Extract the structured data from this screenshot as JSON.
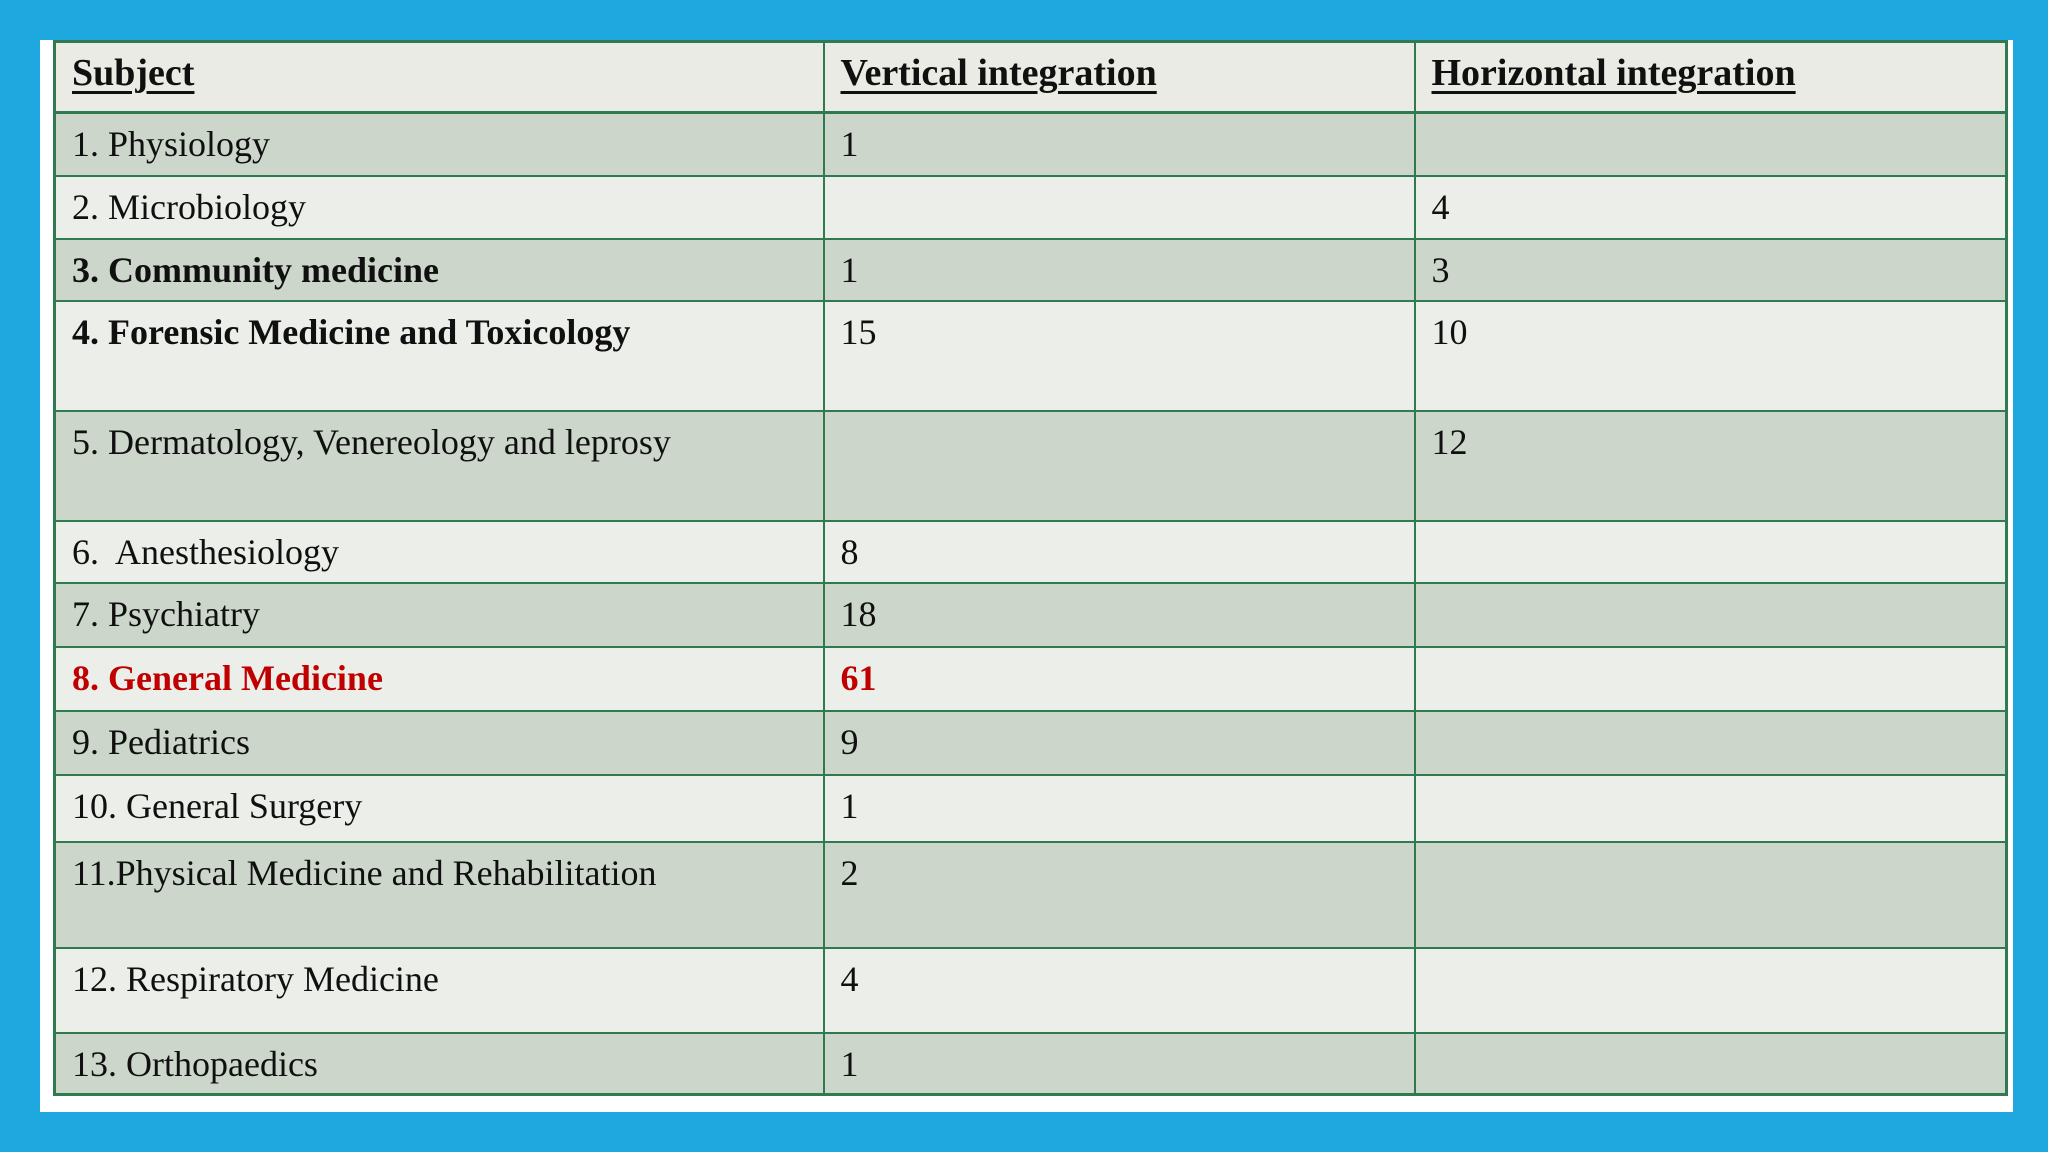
{
  "theme": {
    "frame_blue": "#1fa8e0",
    "paper_white": "#ffffff",
    "border_green": "#2f7b4f",
    "band_dark": "#ccd6ca",
    "band_light": "#eceee9",
    "header_bg": "#e9ebe4",
    "text_black": "#101010",
    "highlight_red": "#c00000"
  },
  "table": {
    "columns": [
      {
        "label": "Subject"
      },
      {
        "label": "Vertical integration"
      },
      {
        "label": "Horizontal integration"
      }
    ],
    "rows": [
      {
        "subject": "1. Physiology",
        "vertical": "1",
        "horizontal": "",
        "bold": false,
        "highlight": false
      },
      {
        "subject": "2. Microbiology",
        "vertical": "",
        "horizontal": "4",
        "bold": false,
        "highlight": false
      },
      {
        "subject": "3. Community medicine",
        "vertical": "1",
        "horizontal": "3",
        "bold": true,
        "highlight": false
      },
      {
        "subject": "4. Forensic Medicine and Toxicology",
        "vertical": "15",
        "horizontal": "10",
        "bold": true,
        "highlight": false
      },
      {
        "subject": "5. Dermatology, Venereology and leprosy",
        "vertical": "",
        "horizontal": "12",
        "bold": false,
        "highlight": false
      },
      {
        "subject": "6.  Anesthesiology",
        "vertical": "8",
        "horizontal": "",
        "bold": false,
        "highlight": false
      },
      {
        "subject": "7. Psychiatry",
        "vertical": "18",
        "horizontal": "",
        "bold": false,
        "highlight": false
      },
      {
        "subject": "8. General Medicine",
        "vertical": "61",
        "horizontal": "",
        "bold": true,
        "highlight": true
      },
      {
        "subject": "9. Pediatrics",
        "vertical": "9",
        "horizontal": "",
        "bold": false,
        "highlight": false
      },
      {
        "subject": "10. General Surgery",
        "vertical": "1",
        "horizontal": "",
        "bold": false,
        "highlight": false
      },
      {
        "subject": "11.Physical Medicine and Rehabilitation",
        "vertical": "2",
        "horizontal": "",
        "bold": false,
        "highlight": false
      },
      {
        "subject": "12. Respiratory Medicine",
        "vertical": "4",
        "horizontal": "",
        "bold": false,
        "highlight": false
      },
      {
        "subject": "13. Orthopaedics",
        "vertical": "1",
        "horizontal": "",
        "bold": false,
        "highlight": false
      }
    ]
  }
}
